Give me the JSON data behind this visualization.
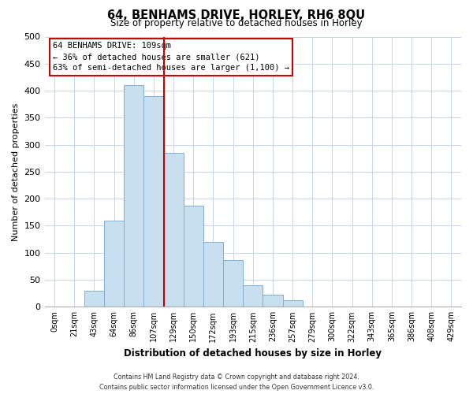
{
  "title": "64, BENHAMS DRIVE, HORLEY, RH6 8QU",
  "subtitle": "Size of property relative to detached houses in Horley",
  "xlabel": "Distribution of detached houses by size in Horley",
  "ylabel": "Number of detached properties",
  "bar_labels": [
    "0sqm",
    "21sqm",
    "43sqm",
    "64sqm",
    "86sqm",
    "107sqm",
    "129sqm",
    "150sqm",
    "172sqm",
    "193sqm",
    "215sqm",
    "236sqm",
    "257sqm",
    "279sqm",
    "300sqm",
    "322sqm",
    "343sqm",
    "365sqm",
    "386sqm",
    "408sqm",
    "429sqm"
  ],
  "bar_values": [
    0,
    0,
    30,
    160,
    410,
    390,
    285,
    187,
    120,
    87,
    40,
    22,
    12,
    0,
    0,
    0,
    0,
    0,
    0,
    0,
    0
  ],
  "bar_color": "#c8dff0",
  "bar_edge_color": "#7fb0d4",
  "highlight_line_color": "#cc0000",
  "ylim": [
    0,
    500
  ],
  "yticks": [
    0,
    50,
    100,
    150,
    200,
    250,
    300,
    350,
    400,
    450,
    500
  ],
  "annotation_title": "64 BENHAMS DRIVE: 109sqm",
  "annotation_line1": "← 36% of detached houses are smaller (621)",
  "annotation_line2": "63% of semi-detached houses are larger (1,100) →",
  "footer_line1": "Contains HM Land Registry data © Crown copyright and database right 2024.",
  "footer_line2": "Contains public sector information licensed under the Open Government Licence v3.0.",
  "background_color": "#ffffff",
  "grid_color": "#c8d4e8"
}
